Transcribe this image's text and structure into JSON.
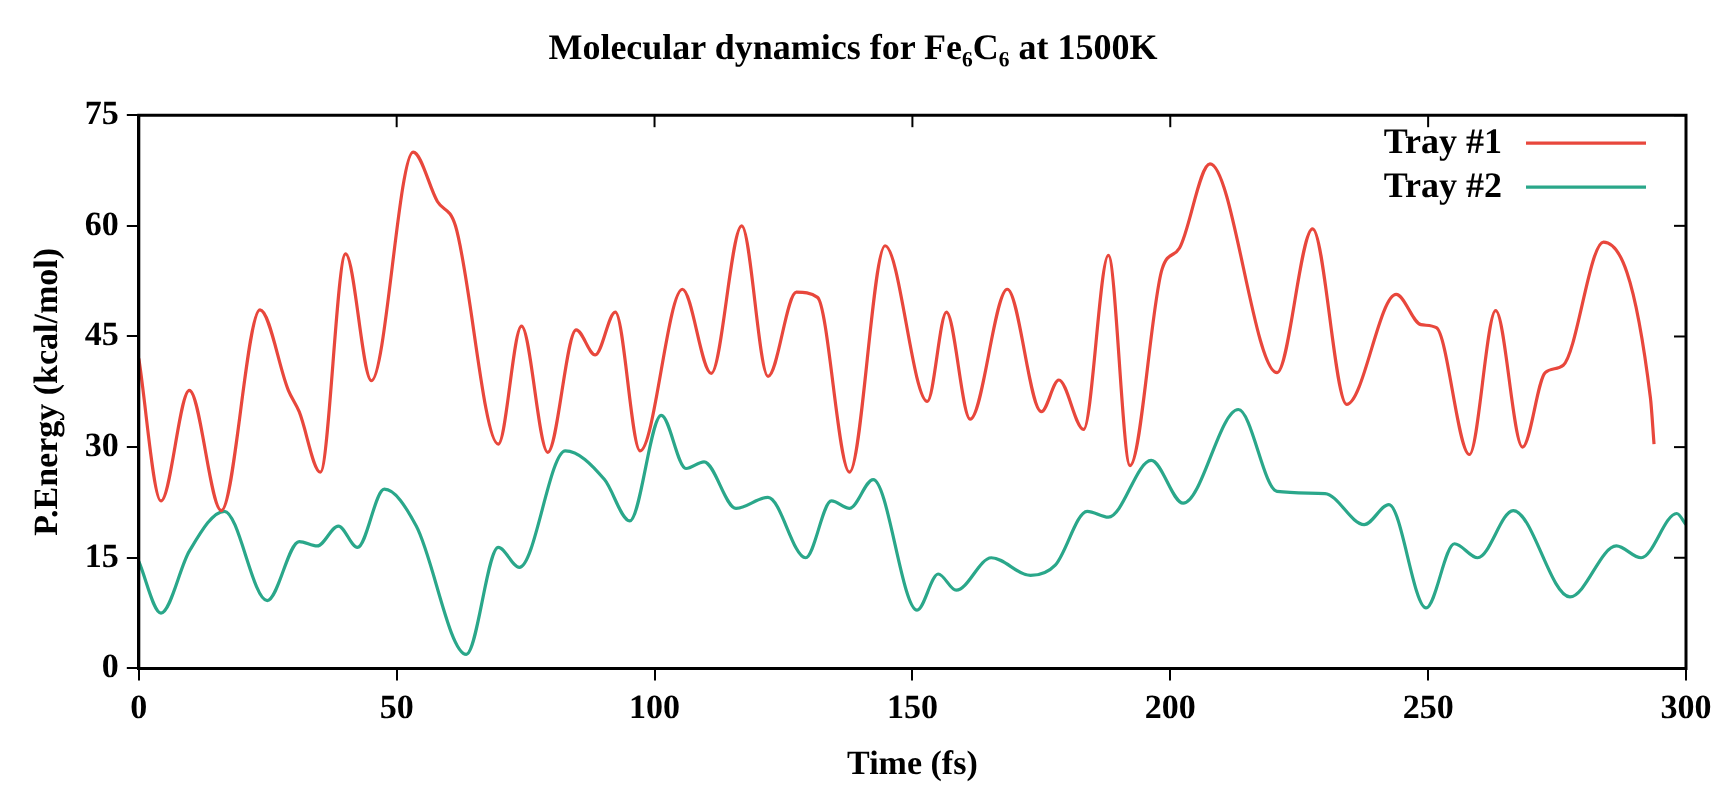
{
  "chart_data": {
    "type": "line",
    "title": "Molecular dynamics for Fe₆C₆ at 1500K",
    "xlabel": "Time (fs)",
    "ylabel": "P.Energy (kcal/mol)",
    "xlim": [
      0,
      300
    ],
    "xticks": [
      0,
      50,
      100,
      150,
      200,
      250,
      300
    ],
    "ylim": [
      0,
      75
    ],
    "yticks": [
      0,
      15,
      30,
      45,
      60,
      75
    ],
    "grid": false,
    "legend": "top right",
    "marker": "none",
    "line_style": "solid",
    "series": [
      {
        "name": "Tray #1",
        "color": "#e8473c",
        "x": [
          0,
          4.3,
          9.8,
          16,
          23.5,
          29,
          31.1,
          35.2,
          40.1,
          45.1,
          53.2,
          57.9,
          61.4,
          69.7,
          74.2,
          79.3,
          84.8,
          88.5,
          92.4,
          97.2,
          105.4,
          111,
          116.9,
          122,
          127.5,
          131.6,
          137.8,
          144.7,
          152.9,
          156.6,
          161.2,
          168.4,
          175,
          178.4,
          183.2,
          188,
          192.2,
          198.4,
          201.8,
          207.7,
          220.7,
          227.6,
          234.2,
          243.8,
          248.6,
          251.6,
          258,
          263.1,
          268.3,
          272.7,
          276.2,
          284,
          293.1,
          293.8
        ],
        "values": [
          42,
          22.7,
          37.7,
          21.4,
          48.6,
          37.7,
          34.8,
          26.6,
          56.2,
          39,
          70,
          63.3,
          60,
          30.4,
          46.4,
          29.3,
          45.9,
          42.5,
          48.3,
          29.5,
          51.4,
          40,
          60,
          39.6,
          51,
          50.3,
          26.6,
          57.3,
          36.2,
          48.3,
          33.8,
          51.4,
          34.8,
          39.1,
          32.4,
          56,
          27.5,
          54.1,
          57,
          68.4,
          40.1,
          59.6,
          35.8,
          50.7,
          46.6,
          46.2,
          29,
          48.5,
          30,
          40.1,
          41.1,
          57.8,
          36.7,
          30.4
        ]
      },
      {
        "name": "Tray #2",
        "color": "#2aa78a",
        "x": [
          0,
          4.3,
          9.8,
          16.6,
          24.9,
          31.1,
          34.6,
          38.7,
          42.4,
          47.6,
          53.8,
          63.5,
          69.7,
          73.8,
          82.7,
          90.3,
          95.2,
          101.3,
          106.1,
          109.6,
          115.8,
          122,
          129.3,
          134.3,
          137.8,
          142.4,
          150.9,
          155,
          158.5,
          165.3,
          172.9,
          177.7,
          183.9,
          188,
          196.3,
          202.5,
          213.2,
          220.7,
          230,
          237.6,
          242.4,
          249.6,
          255.1,
          259.6,
          266.5,
          277.5,
          286.5,
          291.3,
          298.2,
          300
        ],
        "values": [
          14.5,
          7.5,
          15.9,
          21.3,
          9.2,
          17.2,
          16.6,
          19.3,
          16.4,
          24.3,
          19.3,
          1.9,
          16.4,
          13.7,
          29.5,
          25.6,
          20,
          34.3,
          27.1,
          28,
          21.7,
          23.2,
          15,
          22.7,
          21.7,
          25.6,
          7.9,
          12.8,
          10.6,
          15,
          12.6,
          14,
          21.3,
          20.5,
          28.2,
          22.4,
          35.1,
          24,
          23.7,
          19.5,
          22.2,
          8.2,
          16.9,
          15,
          21.4,
          9.7,
          16.6,
          15,
          21,
          19.5
        ]
      }
    ]
  }
}
